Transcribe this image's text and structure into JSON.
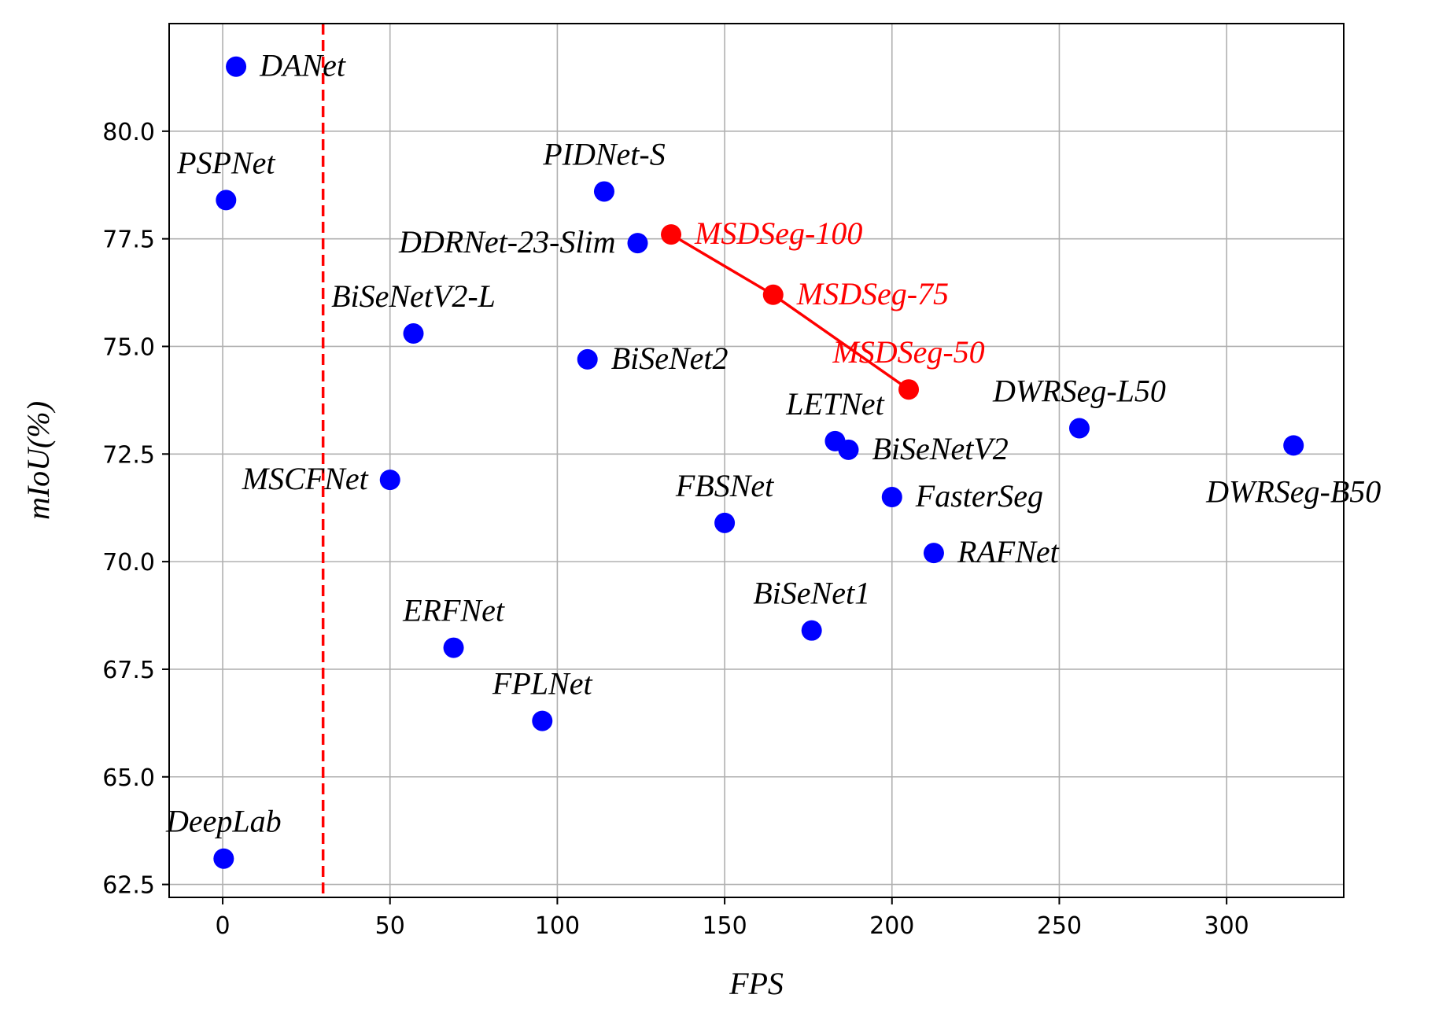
{
  "chart_data": {
    "type": "scatter",
    "xlabel": "FPS",
    "ylabel": "mIoU(%)",
    "xlim": [
      -16,
      335
    ],
    "ylim": [
      62.2,
      82.5
    ],
    "xticks": [
      0,
      50,
      100,
      150,
      200,
      250,
      300
    ],
    "yticks": [
      62.5,
      65.0,
      67.5,
      70.0,
      72.5,
      75.0,
      77.5,
      80.0
    ],
    "grid": true,
    "reference_line": {
      "axis": "x",
      "value": 30,
      "style": "dashed",
      "color": "#ff0000"
    },
    "series": [
      {
        "color": "#0000ff",
        "connected": false,
        "points": [
          {
            "label": "DANet",
            "x": 4,
            "y": 81.5,
            "anchor": "right"
          },
          {
            "label": "PSPNet",
            "x": 1,
            "y": 78.4,
            "anchor": "above"
          },
          {
            "label": "PIDNet-S",
            "x": 114,
            "y": 78.6,
            "anchor": "above"
          },
          {
            "label": "DDRNet-23-Slim",
            "x": 124,
            "y": 77.4,
            "anchor": "left"
          },
          {
            "label": "BiSeNetV2-L",
            "x": 57,
            "y": 75.3,
            "anchor": "above"
          },
          {
            "label": "BiSeNet2",
            "x": 109,
            "y": 74.7,
            "anchor": "right"
          },
          {
            "label": "LETNet",
            "x": 183,
            "y": 72.8,
            "anchor": "above"
          },
          {
            "label": "BiSeNetV2",
            "x": 187,
            "y": 72.6,
            "anchor": "right"
          },
          {
            "label": "DWRSeg-L50",
            "x": 256,
            "y": 73.1,
            "anchor": "above"
          },
          {
            "label": "DWRSeg-B50",
            "x": 320,
            "y": 72.7,
            "anchor": "below"
          },
          {
            "label": "MSCFNet",
            "x": 50,
            "y": 71.9,
            "anchor": "left"
          },
          {
            "label": "FBSNet",
            "x": 150,
            "y": 70.9,
            "anchor": "above"
          },
          {
            "label": "FasterSeg",
            "x": 200,
            "y": 71.5,
            "anchor": "right"
          },
          {
            "label": "RAFNet",
            "x": 212.5,
            "y": 70.2,
            "anchor": "right"
          },
          {
            "label": "BiSeNet1",
            "x": 176,
            "y": 68.4,
            "anchor": "above"
          },
          {
            "label": "ERFNet",
            "x": 69,
            "y": 68.0,
            "anchor": "above"
          },
          {
            "label": "FPLNet",
            "x": 95.5,
            "y": 66.3,
            "anchor": "above"
          },
          {
            "label": "DeepLab",
            "x": 0.3,
            "y": 63.1,
            "anchor": "above"
          }
        ]
      },
      {
        "color": "#ff0000",
        "connected": true,
        "points": [
          {
            "label": "MSDSeg-100",
            "x": 134,
            "y": 77.6,
            "anchor": "right"
          },
          {
            "label": "MSDSeg-75",
            "x": 164.5,
            "y": 76.2,
            "anchor": "right"
          },
          {
            "label": "MSDSeg-50",
            "x": 205,
            "y": 74.0,
            "anchor": "above"
          }
        ]
      }
    ]
  }
}
